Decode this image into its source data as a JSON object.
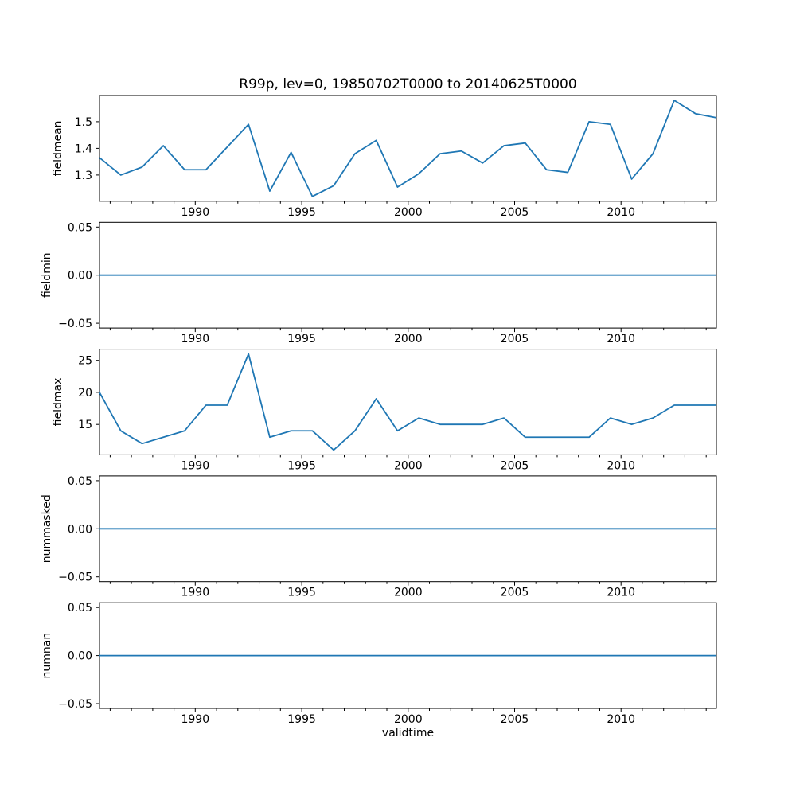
{
  "chart_data": {
    "type": "line",
    "title": "R99p, lev=0, 19850702T0000 to 20140625T0000",
    "xlabel": "validtime",
    "line_color": "#1f77b4",
    "axes_color": "#000000",
    "background_color": "#ffffff",
    "legend": "none",
    "grid": false,
    "xlim": [
      1985.5,
      2014.48
    ],
    "xticks": [
      1990,
      1995,
      2000,
      2005,
      2010
    ],
    "xtick_labels": [
      "1990",
      "1995",
      "2000",
      "2005",
      "2010"
    ],
    "x_minor_tick_interval_years": 1,
    "x": [
      1985.5,
      1986.5,
      1987.5,
      1988.5,
      1989.5,
      1990.5,
      1991.5,
      1992.5,
      1993.5,
      1994.5,
      1995.5,
      1996.5,
      1997.5,
      1998.5,
      1999.5,
      2000.5,
      2001.5,
      2002.5,
      2003.5,
      2004.5,
      2005.5,
      2006.5,
      2007.5,
      2008.5,
      2009.5,
      2010.5,
      2011.5,
      2012.5,
      2013.5,
      2014.48
    ],
    "subplots": [
      {
        "ylabel": "fieldmean",
        "values": [
          1.365,
          1.3,
          1.33,
          1.41,
          1.32,
          1.32,
          1.405,
          1.49,
          1.24,
          1.385,
          1.22,
          1.26,
          1.38,
          1.43,
          1.255,
          1.305,
          1.38,
          1.39,
          1.345,
          1.41,
          1.42,
          1.32,
          1.31,
          1.5,
          1.49,
          1.285,
          1.38,
          1.58,
          1.53,
          1.515
        ],
        "yticks": [
          1.3,
          1.4,
          1.5
        ],
        "ytick_labels": [
          "1.3",
          "1.4",
          "1.5"
        ],
        "ylim": [
          1.202,
          1.598
        ]
      },
      {
        "ylabel": "fieldmin",
        "values": [
          0,
          0,
          0,
          0,
          0,
          0,
          0,
          0,
          0,
          0,
          0,
          0,
          0,
          0,
          0,
          0,
          0,
          0,
          0,
          0,
          0,
          0,
          0,
          0,
          0,
          0,
          0,
          0,
          0,
          0
        ],
        "yticks": [
          -0.05,
          0.0,
          0.05
        ],
        "ytick_labels": [
          "−0.05",
          "0.00",
          "0.05"
        ],
        "ylim": [
          -0.055,
          0.055
        ]
      },
      {
        "ylabel": "fieldmax",
        "values": [
          20,
          14,
          12,
          13,
          14,
          18,
          18,
          26,
          13,
          14,
          14,
          11,
          14,
          19,
          14,
          16,
          15,
          15,
          15,
          16,
          13,
          13,
          13,
          13,
          16,
          15,
          16,
          18,
          18,
          18
        ],
        "yticks": [
          15,
          20,
          25
        ],
        "ytick_labels": [
          "15",
          "20",
          "25"
        ],
        "ylim": [
          10.25,
          26.75
        ]
      },
      {
        "ylabel": "nummasked",
        "values": [
          0,
          0,
          0,
          0,
          0,
          0,
          0,
          0,
          0,
          0,
          0,
          0,
          0,
          0,
          0,
          0,
          0,
          0,
          0,
          0,
          0,
          0,
          0,
          0,
          0,
          0,
          0,
          0,
          0,
          0
        ],
        "yticks": [
          -0.05,
          0.0,
          0.05
        ],
        "ytick_labels": [
          "−0.05",
          "0.00",
          "0.05"
        ],
        "ylim": [
          -0.055,
          0.055
        ]
      },
      {
        "ylabel": "numnan",
        "values": [
          0,
          0,
          0,
          0,
          0,
          0,
          0,
          0,
          0,
          0,
          0,
          0,
          0,
          0,
          0,
          0,
          0,
          0,
          0,
          0,
          0,
          0,
          0,
          0,
          0,
          0,
          0,
          0,
          0,
          0
        ],
        "yticks": [
          -0.05,
          0.0,
          0.05
        ],
        "ytick_labels": [
          "−0.05",
          "0.00",
          "0.05"
        ],
        "ylim": [
          -0.055,
          0.055
        ]
      }
    ]
  }
}
